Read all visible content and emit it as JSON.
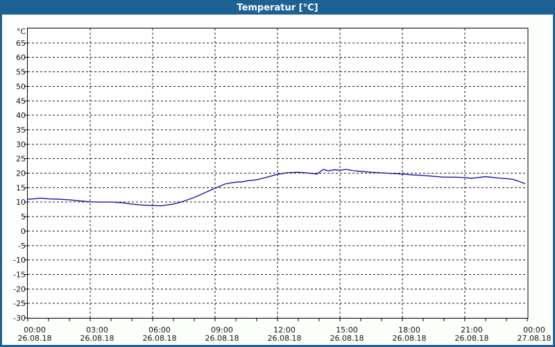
{
  "window": {
    "title": "Temperatur [°C]"
  },
  "colors": {
    "titlebar": "#1c6094",
    "window_border": "#1c6094",
    "background": "#fcfffc",
    "plot_background": "#ffffff",
    "plot_border": "#000000",
    "grid": "#1a1a1a",
    "tick": "#000000",
    "label_text": "#111111",
    "title_text": "#ffffff",
    "line": "#1818b0"
  },
  "chart_data": {
    "type": "line",
    "title": "Temperatur [°C]",
    "y_axis_unit": "°C",
    "ylim": [
      -30,
      70
    ],
    "y_tick_step": 5,
    "y_ticks": [
      {
        "value": 65,
        "label": "65"
      },
      {
        "value": 60,
        "label": "60"
      },
      {
        "value": 55,
        "label": "55"
      },
      {
        "value": 50,
        "label": "50"
      },
      {
        "value": 45,
        "label": "45"
      },
      {
        "value": 40,
        "label": "40"
      },
      {
        "value": 35,
        "label": "35"
      },
      {
        "value": 30,
        "label": "30"
      },
      {
        "value": 25,
        "label": "25"
      },
      {
        "value": 20,
        "label": "20"
      },
      {
        "value": 15,
        "label": "15"
      },
      {
        "value": 10,
        "label": "10"
      },
      {
        "value": 5,
        "label": "5"
      },
      {
        "value": 0,
        "label": "0"
      },
      {
        "value": -5,
        "label": "-5"
      },
      {
        "value": -10,
        "label": "-10"
      },
      {
        "value": -15,
        "label": "-15"
      },
      {
        "value": -20,
        "label": "-20"
      },
      {
        "value": -25,
        "label": "-25"
      },
      {
        "value": -30,
        "label": "-30"
      }
    ],
    "x_range_hours": [
      0,
      24
    ],
    "x_minor_step_hours": 1,
    "x_major_step_hours": 3,
    "x_ticks": [
      {
        "hour": 0,
        "time": "00:00",
        "date": "26.08.18"
      },
      {
        "hour": 3,
        "time": "03:00",
        "date": "26.08.18"
      },
      {
        "hour": 6,
        "time": "06:00",
        "date": "26.08.18"
      },
      {
        "hour": 9,
        "time": "09:00",
        "date": "26.08.18"
      },
      {
        "hour": 12,
        "time": "12:00",
        "date": "26.08.18"
      },
      {
        "hour": 15,
        "time": "15:00",
        "date": "26.08.18"
      },
      {
        "hour": 18,
        "time": "18:00",
        "date": "26.08.18"
      },
      {
        "hour": 21,
        "time": "21:00",
        "date": "26.08.18"
      },
      {
        "hour": 24,
        "time": "00:00",
        "date": "27.08.18"
      }
    ],
    "grid": true,
    "legend": false,
    "series": [
      {
        "name": "Temperatur",
        "unit": "°C",
        "points": [
          [
            0.0,
            11.0
          ],
          [
            0.3,
            11.1
          ],
          [
            0.6,
            11.4
          ],
          [
            1.0,
            11.1
          ],
          [
            1.5,
            11.0
          ],
          [
            2.0,
            10.8
          ],
          [
            2.5,
            10.4
          ],
          [
            3.0,
            10.1
          ],
          [
            3.5,
            10.0
          ],
          [
            4.0,
            10.0
          ],
          [
            4.5,
            9.8
          ],
          [
            5.0,
            9.3
          ],
          [
            5.5,
            9.0
          ],
          [
            6.0,
            8.8
          ],
          [
            6.4,
            8.7
          ],
          [
            7.0,
            9.3
          ],
          [
            7.5,
            10.3
          ],
          [
            8.0,
            11.6
          ],
          [
            8.5,
            13.2
          ],
          [
            9.0,
            14.8
          ],
          [
            9.5,
            16.3
          ],
          [
            10.0,
            16.9
          ],
          [
            10.3,
            17.0
          ],
          [
            10.6,
            17.4
          ],
          [
            11.0,
            17.7
          ],
          [
            11.5,
            18.6
          ],
          [
            12.0,
            19.6
          ],
          [
            12.5,
            20.2
          ],
          [
            13.0,
            20.3
          ],
          [
            13.4,
            20.1
          ],
          [
            13.9,
            19.7
          ],
          [
            14.2,
            21.3
          ],
          [
            14.45,
            20.8
          ],
          [
            14.75,
            21.2
          ],
          [
            15.0,
            21.0
          ],
          [
            15.3,
            21.3
          ],
          [
            15.6,
            20.9
          ],
          [
            16.0,
            20.6
          ],
          [
            16.5,
            20.3
          ],
          [
            17.0,
            20.1
          ],
          [
            17.5,
            19.9
          ],
          [
            18.0,
            19.7
          ],
          [
            18.5,
            19.4
          ],
          [
            19.0,
            19.2
          ],
          [
            19.5,
            18.9
          ],
          [
            20.0,
            18.6
          ],
          [
            20.5,
            18.6
          ],
          [
            21.0,
            18.5
          ],
          [
            21.3,
            18.2
          ],
          [
            22.0,
            18.8
          ],
          [
            22.5,
            18.4
          ],
          [
            23.0,
            18.1
          ],
          [
            23.3,
            17.9
          ],
          [
            23.7,
            16.9
          ],
          [
            23.9,
            16.3
          ]
        ]
      }
    ]
  }
}
